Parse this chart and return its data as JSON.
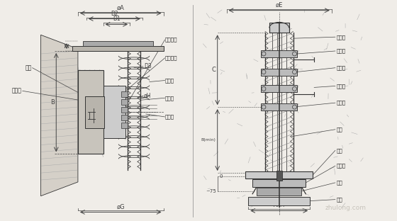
{
  "bg_color": "#f0ede8",
  "line_color": "#333333",
  "dim_color": "#444444",
  "text_color": "#222222",
  "fig_width": 5.6,
  "fig_height": 3.12,
  "dpi": 100,
  "left_labels": [
    "螺母",
    "锚垫板"
  ],
  "right_labels_left": [
    "工作夹片",
    "工作锚板",
    "螺旋筋",
    "波纹管",
    "钢绞线"
  ],
  "right_labels_right": [
    "波纹管",
    "约束圈",
    "螺旋筋",
    "灌浆管",
    "钢绞线",
    "螺母",
    "锚板",
    "承压头",
    "焊拦",
    "压板"
  ],
  "left_dims": [
    "øA",
    "D2",
    "D1",
    "B",
    "øG",
    "øH",
    "D3"
  ],
  "right_dims": [
    "øE",
    "C",
    "B(min)",
    "AXA"
  ]
}
